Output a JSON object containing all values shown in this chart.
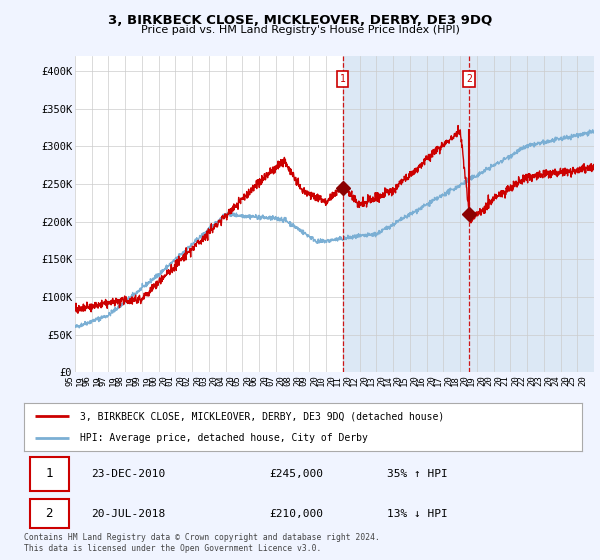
{
  "title": "3, BIRKBECK CLOSE, MICKLEOVER, DERBY, DE3 9DQ",
  "subtitle": "Price paid vs. HM Land Registry's House Price Index (HPI)",
  "ylabel_ticks": [
    "£0",
    "£50K",
    "£100K",
    "£150K",
    "£200K",
    "£250K",
    "£300K",
    "£350K",
    "£400K"
  ],
  "ytick_values": [
    0,
    50000,
    100000,
    150000,
    200000,
    250000,
    300000,
    350000,
    400000
  ],
  "ylim": [
    0,
    420000
  ],
  "hpi_color": "#7bafd4",
  "price_color": "#cc0000",
  "marker_fill_color": "#8b0000",
  "marker1_x": 2010.98,
  "marker1_y": 245000,
  "marker2_x": 2018.55,
  "marker2_y": 210000,
  "marker1_label": "1",
  "marker2_label": "2",
  "vline1_x": 2010.98,
  "vline2_x": 2018.55,
  "legend_line1": "3, BIRKBECK CLOSE, MICKLEOVER, DERBY, DE3 9DQ (detached house)",
  "legend_line2": "HPI: Average price, detached house, City of Derby",
  "table_row1_num": "1",
  "table_row1_date": "23-DEC-2010",
  "table_row1_price": "£245,000",
  "table_row1_hpi": "35% ↑ HPI",
  "table_row2_num": "2",
  "table_row2_date": "20-JUL-2018",
  "table_row2_price": "£210,000",
  "table_row2_hpi": "13% ↓ HPI",
  "footer": "Contains HM Land Registry data © Crown copyright and database right 2024.\nThis data is licensed under the Open Government Licence v3.0.",
  "background_color": "#f0f4ff",
  "plot_bg_color": "#ffffff",
  "xmin": 1995,
  "xmax": 2026,
  "span_color": "#dce8f5",
  "grid_color": "#cccccc"
}
